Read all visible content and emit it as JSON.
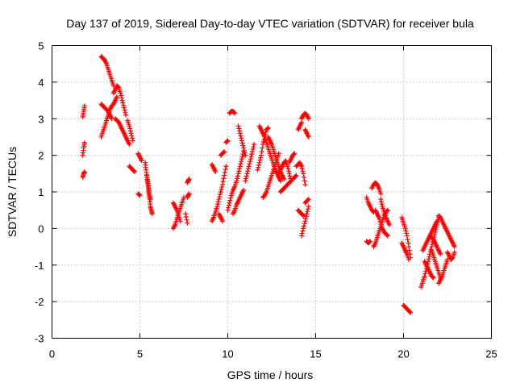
{
  "chart_data": {
    "type": "scatter",
    "title": "Day 137 of 2019, Sidereal Day-to-day VTEC variation (SDTVAR) for receiver bula",
    "xlabel": "GPS time / hours",
    "ylabel": "SDTVAR / TECUs",
    "xlim": [
      0,
      25
    ],
    "ylim": [
      -3,
      5
    ],
    "xticks": [
      0,
      5,
      10,
      15,
      20,
      25
    ],
    "yticks": [
      -3,
      -2,
      -1,
      0,
      1,
      2,
      3,
      4,
      5
    ],
    "grid": true,
    "marker": "+",
    "color": "#ff0000",
    "series": [
      {
        "name": "SDTVAR",
        "segments": [
          {
            "x": [
              1.75,
              1.8,
              1.85
            ],
            "y": [
              1.4,
              1.5,
              1.55
            ]
          },
          {
            "x": [
              1.75,
              1.8,
              1.85
            ],
            "y": [
              2.0,
              2.2,
              2.35
            ]
          },
          {
            "x": [
              1.75,
              1.8,
              1.85
            ],
            "y": [
              3.05,
              3.2,
              3.35
            ]
          },
          {
            "x": [
              2.8,
              2.9,
              3.0,
              3.1,
              3.2,
              3.3,
              3.4,
              3.5
            ],
            "y": [
              4.7,
              4.65,
              4.6,
              4.5,
              4.35,
              4.2,
              4.05,
              3.9
            ]
          },
          {
            "x": [
              2.8,
              2.9,
              3.0,
              3.1,
              3.2,
              3.3,
              3.4,
              3.5,
              3.6,
              3.7
            ],
            "y": [
              2.5,
              2.65,
              2.8,
              2.95,
              3.1,
              3.25,
              3.35,
              3.4,
              3.5,
              3.6
            ]
          },
          {
            "x": [
              2.8,
              2.9,
              3.0,
              3.1,
              3.2,
              3.3,
              3.4
            ],
            "y": [
              3.4,
              3.35,
              3.3,
              3.25,
              3.2,
              3.1,
              3.0
            ]
          },
          {
            "x": [
              3.5,
              3.6,
              3.7,
              3.8,
              3.9,
              4.0,
              4.1,
              4.2
            ],
            "y": [
              3.7,
              3.8,
              3.9,
              3.85,
              3.7,
              3.5,
              3.3,
              3.1
            ]
          },
          {
            "x": [
              3.6,
              3.7,
              3.8,
              3.9,
              4.0,
              4.1,
              4.2,
              4.3,
              4.4
            ],
            "y": [
              3.0,
              2.95,
              2.9,
              2.8,
              2.7,
              2.6,
              2.5,
              2.4,
              2.3
            ]
          },
          {
            "x": [
              4.3,
              4.4,
              4.5,
              4.6
            ],
            "y": [
              2.95,
              2.8,
              2.6,
              2.4
            ]
          },
          {
            "x": [
              4.4,
              4.5,
              4.6,
              4.7
            ],
            "y": [
              1.7,
              1.65,
              1.6,
              1.55
            ]
          },
          {
            "x": [
              4.9,
              5.0,
              5.1
            ],
            "y": [
              2.05,
              1.95,
              1.85
            ]
          },
          {
            "x": [
              4.9,
              5.0
            ],
            "y": [
              0.95,
              0.9
            ]
          },
          {
            "x": [
              5.3,
              5.35,
              5.4,
              5.45,
              5.5,
              5.55,
              5.6,
              5.65,
              5.7
            ],
            "y": [
              1.8,
              1.6,
              1.4,
              1.2,
              1.0,
              0.8,
              0.6,
              0.5,
              0.4
            ]
          },
          {
            "x": [
              5.4,
              5.45,
              5.5,
              5.55,
              5.6
            ],
            "y": [
              1.45,
              1.3,
              1.1,
              0.9,
              0.8
            ]
          },
          {
            "x": [
              6.9,
              7.0,
              7.1,
              7.2,
              7.3,
              7.4,
              7.5
            ],
            "y": [
              0.0,
              0.1,
              0.25,
              0.4,
              0.55,
              0.7,
              0.85
            ]
          },
          {
            "x": [
              6.9,
              7.0,
              7.1,
              7.2,
              7.3
            ],
            "y": [
              0.7,
              0.6,
              0.5,
              0.35,
              0.2
            ]
          },
          {
            "x": [
              7.7,
              7.75,
              7.8
            ],
            "y": [
              1.25,
              1.3,
              1.35
            ]
          },
          {
            "x": [
              7.7,
              7.75,
              7.8
            ],
            "y": [
              0.85,
              0.9,
              0.95
            ]
          },
          {
            "x": [
              7.6,
              7.7
            ],
            "y": [
              0.4,
              0.15
            ]
          },
          {
            "x": [
              9.1,
              9.2,
              9.3,
              9.4,
              9.5,
              9.6,
              9.7,
              9.8,
              9.9
            ],
            "y": [
              0.2,
              0.3,
              0.45,
              0.6,
              0.8,
              1.0,
              1.2,
              1.45,
              1.7
            ]
          },
          {
            "x": [
              9.1,
              9.2,
              9.3
            ],
            "y": [
              1.75,
              1.65,
              1.55
            ]
          },
          {
            "x": [
              9.6,
              9.7,
              9.8
            ],
            "y": [
              2.0,
              2.05,
              2.1
            ]
          },
          {
            "x": [
              9.9,
              10.0
            ],
            "y": [
              2.35,
              2.4
            ]
          },
          {
            "x": [
              9.5,
              9.6,
              9.7
            ],
            "y": [
              0.4,
              0.3,
              0.2
            ]
          },
          {
            "x": [
              10.1,
              10.2,
              10.3,
              10.4
            ],
            "y": [
              3.15,
              3.2,
              3.2,
              3.15
            ]
          },
          {
            "x": [
              10.0,
              10.1,
              10.2,
              10.3,
              10.4,
              10.5,
              10.6,
              10.7,
              10.8,
              10.9
            ],
            "y": [
              0.5,
              0.7,
              0.9,
              1.05,
              1.15,
              1.3,
              1.5,
              1.7,
              1.9,
              2.1
            ]
          },
          {
            "x": [
              10.3,
              10.4,
              10.5,
              10.6,
              10.7,
              10.8,
              10.9
            ],
            "y": [
              0.4,
              0.5,
              0.65,
              0.75,
              0.85,
              0.95,
              1.05
            ]
          },
          {
            "x": [
              10.6,
              10.7,
              10.8,
              10.9,
              11.0
            ],
            "y": [
              2.8,
              2.6,
              2.4,
              2.2,
              2.0
            ]
          },
          {
            "x": [
              11.0,
              11.1,
              11.2,
              11.3,
              11.4,
              11.5
            ],
            "y": [
              1.3,
              1.5,
              1.7,
              1.9,
              2.1,
              2.3
            ]
          },
          {
            "x": [
              11.7,
              11.8,
              11.9,
              12.0,
              12.1,
              12.2,
              12.3
            ],
            "y": [
              1.6,
              1.8,
              2.0,
              2.3,
              2.5,
              2.7,
              2.75
            ]
          },
          {
            "x": [
              11.8,
              11.9,
              12.0,
              12.1,
              12.2,
              12.3,
              12.4,
              12.5,
              12.6,
              12.7,
              12.8,
              12.9,
              13.0
            ],
            "y": [
              2.8,
              2.7,
              2.6,
              2.5,
              2.35,
              2.2,
              2.05,
              1.9,
              1.75,
              1.6,
              1.5,
              1.4,
              1.3
            ]
          },
          {
            "x": [
              12.0,
              12.1,
              12.2,
              12.3,
              12.4,
              12.5,
              12.6,
              12.7,
              12.8,
              12.9
            ],
            "y": [
              0.85,
              0.9,
              1.0,
              1.15,
              1.3,
              1.45,
              1.6,
              1.75,
              1.9,
              2.05
            ]
          },
          {
            "x": [
              12.3,
              12.4,
              12.5,
              12.6,
              12.7,
              12.8,
              12.9,
              13.0,
              13.1,
              13.2
            ],
            "y": [
              2.5,
              2.4,
              2.3,
              2.15,
              2.0,
              1.85,
              1.7,
              1.55,
              1.45,
              1.35
            ]
          },
          {
            "x": [
              12.9,
              13.0,
              13.1,
              13.2,
              13.3,
              13.4,
              13.5,
              13.6
            ],
            "y": [
              1.5,
              1.6,
              1.7,
              1.8,
              1.85,
              1.7,
              1.5,
              1.3
            ]
          },
          {
            "x": [
              13.0,
              13.1,
              13.2,
              13.3,
              13.4,
              13.5,
              13.6,
              13.7,
              13.8,
              13.9
            ],
            "y": [
              1.0,
              1.05,
              1.1,
              1.15,
              1.2,
              1.25,
              1.3,
              1.35,
              1.4,
              1.45
            ]
          },
          {
            "x": [
              13.5,
              13.6,
              13.7,
              13.8
            ],
            "y": [
              1.8,
              1.9,
              2.0,
              2.05
            ]
          },
          {
            "x": [
              13.9,
              14.0,
              14.1,
              14.2,
              14.3,
              14.4
            ],
            "y": [
              1.7,
              1.75,
              1.8,
              1.7,
              1.5,
              1.2
            ]
          },
          {
            "x": [
              14.0,
              14.1,
              14.2,
              14.3
            ],
            "y": [
              0.5,
              0.45,
              0.4,
              0.35
            ]
          },
          {
            "x": [
              14.2,
              14.3,
              14.4,
              14.5,
              14.6
            ],
            "y": [
              -0.2,
              0.0,
              0.2,
              0.4,
              0.6
            ]
          },
          {
            "x": [
              14.4,
              14.5,
              14.6
            ],
            "y": [
              0.7,
              0.75,
              0.8
            ]
          },
          {
            "x": [
              14.2,
              14.3,
              14.4,
              14.5,
              14.6
            ],
            "y": [
              3.0,
              3.1,
              3.15,
              3.1,
              3.0
            ]
          },
          {
            "x": [
              14.0,
              14.1,
              14.2
            ],
            "y": [
              2.7,
              2.8,
              2.9
            ]
          },
          {
            "x": [
              14.4,
              14.5,
              14.6
            ],
            "y": [
              2.7,
              2.6,
              2.5
            ]
          },
          {
            "x": [
              17.9,
              18.0,
              18.1,
              18.2,
              18.3
            ],
            "y": [
              0.85,
              0.7,
              0.6,
              0.5,
              0.45
            ]
          },
          {
            "x": [
              17.9,
              18.0,
              18.1
            ],
            "y": [
              -0.35,
              -0.4,
              -0.35
            ]
          },
          {
            "x": [
              18.2,
              18.3,
              18.4,
              18.5,
              18.6,
              18.7
            ],
            "y": [
              1.1,
              1.2,
              1.25,
              1.2,
              1.1,
              0.95
            ]
          },
          {
            "x": [
              18.3,
              18.4,
              18.5,
              18.6,
              18.7,
              18.8,
              18.9,
              19.0,
              19.1
            ],
            "y": [
              -0.5,
              -0.4,
              -0.25,
              -0.1,
              0.05,
              0.2,
              0.35,
              0.45,
              0.5
            ]
          },
          {
            "x": [
              18.4,
              18.5,
              18.6,
              18.7,
              18.8,
              18.9,
              19.0,
              19.1
            ],
            "y": [
              0.5,
              0.4,
              0.3,
              0.15,
              0.0,
              -0.1,
              -0.15,
              -0.2
            ]
          },
          {
            "x": [
              18.7,
              18.8,
              18.9,
              19.0,
              19.1,
              19.2
            ],
            "y": [
              0.8,
              0.6,
              0.45,
              0.3,
              0.2,
              0.1
            ]
          },
          {
            "x": [
              19.9,
              20.0,
              20.1,
              20.2,
              20.3,
              20.4
            ],
            "y": [
              0.3,
              0.15,
              0.0,
              -0.2,
              -0.5,
              -0.8
            ]
          },
          {
            "x": [
              19.9,
              20.0,
              20.1,
              20.2,
              20.3
            ],
            "y": [
              -0.4,
              -0.5,
              -0.6,
              -0.7,
              -0.85
            ]
          },
          {
            "x": [
              20.0,
              20.1,
              20.2,
              20.3,
              20.4
            ],
            "y": [
              -2.1,
              -2.15,
              -2.2,
              -2.25,
              -2.3
            ]
          },
          {
            "x": [
              21.0,
              21.1,
              21.2,
              21.3,
              21.4,
              21.5,
              21.6,
              21.7,
              21.8,
              21.9,
              22.0
            ],
            "y": [
              -1.6,
              -1.45,
              -1.3,
              -1.1,
              -0.9,
              -0.7,
              -0.5,
              -0.3,
              -0.1,
              0.1,
              0.3
            ]
          },
          {
            "x": [
              21.1,
              21.2,
              21.3,
              21.4,
              21.5,
              21.6,
              21.7,
              21.8,
              21.9
            ],
            "y": [
              -0.6,
              -0.5,
              -0.4,
              -0.3,
              -0.2,
              -0.1,
              0.0,
              0.1,
              0.2
            ]
          },
          {
            "x": [
              21.2,
              21.3,
              21.4,
              21.5,
              21.6,
              21.7
            ],
            "y": [
              -0.9,
              -1.0,
              -1.1,
              -1.2,
              -1.3,
              -1.35
            ]
          },
          {
            "x": [
              21.6,
              21.7,
              21.8,
              21.9,
              22.0,
              22.1
            ],
            "y": [
              -0.6,
              -0.75,
              -0.9,
              -1.05,
              -1.2,
              -1.35
            ]
          },
          {
            "x": [
              22.0,
              22.1,
              22.2,
              22.3,
              22.4,
              22.5
            ],
            "y": [
              -1.5,
              -1.4,
              -1.3,
              -1.15,
              -1.0,
              -0.85
            ]
          },
          {
            "x": [
              22.0,
              22.1,
              22.2,
              22.3,
              22.4,
              22.5,
              22.6,
              22.7,
              22.8,
              22.9
            ],
            "y": [
              0.35,
              0.3,
              0.2,
              0.1,
              0.0,
              -0.1,
              -0.2,
              -0.3,
              -0.4,
              -0.5
            ]
          },
          {
            "x": [
              22.5,
              22.6,
              22.7,
              22.8,
              22.9
            ],
            "y": [
              -0.65,
              -0.75,
              -0.85,
              -0.8,
              -0.65
            ]
          },
          {
            "x": [
              21.5,
              21.6,
              21.7,
              21.8,
              21.9,
              22.0,
              22.1
            ],
            "y": [
              -0.2,
              -0.25,
              -0.3,
              -0.4,
              -0.5,
              -0.6,
              -0.7
            ]
          }
        ]
      }
    ]
  }
}
